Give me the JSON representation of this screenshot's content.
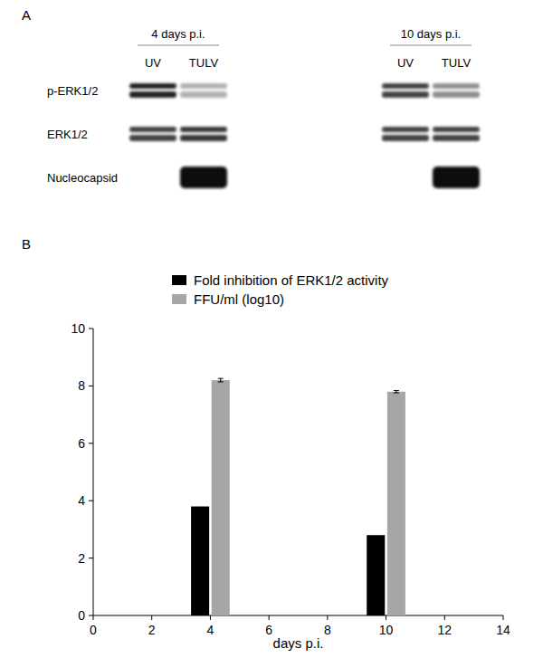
{
  "figure": {
    "panels": [
      "A",
      "B"
    ]
  },
  "blot": {
    "groups": [
      {
        "label": "4 days p.i.",
        "lanes": [
          "UV",
          "TULV"
        ]
      },
      {
        "label": "10 days p.i.",
        "lanes": [
          "UV",
          "TULV"
        ]
      }
    ],
    "rows": [
      {
        "label": "p-ERK1/2",
        "bands": [
          1.0,
          0.35,
          0.85,
          0.5
        ]
      },
      {
        "label": "ERK1/2",
        "bands": [
          0.85,
          0.9,
          0.85,
          0.85
        ]
      },
      {
        "label": "Nucleocapsid",
        "bands": [
          0,
          1.0,
          0,
          1.0
        ]
      }
    ]
  },
  "chart_data": {
    "type": "bar",
    "x": [
      4,
      10
    ],
    "xlabel": "days p.i.",
    "series": [
      {
        "name": "Fold inhibition of ERK1/2 activity",
        "color": "#000000",
        "values": [
          3.8,
          2.8
        ]
      },
      {
        "name": "FFU/ml (log10)",
        "color": "#a6a6a6",
        "values": [
          8.2,
          7.8
        ],
        "errors": [
          0.06,
          0.04
        ]
      }
    ],
    "xlim": [
      0,
      14
    ],
    "xticks": [
      0,
      2,
      4,
      6,
      8,
      10,
      12,
      14
    ],
    "ylim": [
      0,
      10
    ],
    "yticks": [
      0,
      2,
      4,
      6,
      8,
      10
    ],
    "grid": false,
    "legend": "top"
  }
}
